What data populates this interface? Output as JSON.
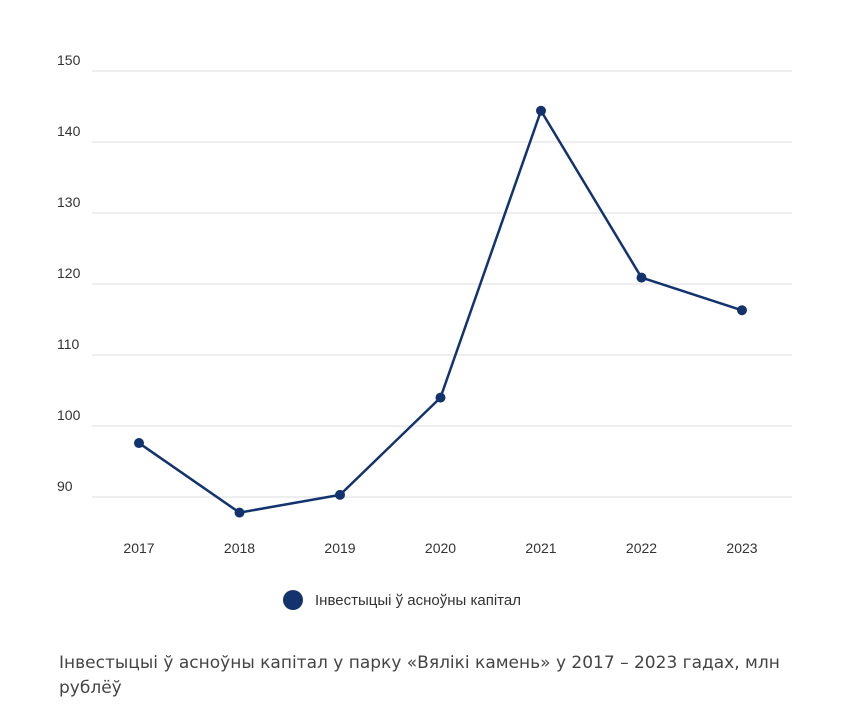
{
  "colors": {
    "series": "#13336e",
    "grid": "#dcdcdc",
    "text": "#333333"
  },
  "chart_data": {
    "type": "line",
    "categories": [
      "2017",
      "2018",
      "2019",
      "2020",
      "2021",
      "2022",
      "2023"
    ],
    "series": [
      {
        "name": "Інвестыцыі ў асноўны капітал",
        "values": [
          97.6,
          87.8,
          90.3,
          104,
          144.4,
          120.9,
          116.3
        ]
      }
    ],
    "yticks": [
      "90",
      "100",
      "110",
      "120",
      "130",
      "140",
      "150"
    ],
    "ylim": [
      85,
      150
    ],
    "grid": true,
    "legend": "bottom-center",
    "title": "",
    "xlabel": "",
    "ylabel": ""
  },
  "legend": {
    "label": "Інвестыцыі ў асноўны капітал",
    "icon": "circle-marker-icon"
  },
  "caption": "Інвестыцыі ў асноўны капітал у парку «Вялікі камень» у 2017 – 2023 гадах, млн рублёў"
}
